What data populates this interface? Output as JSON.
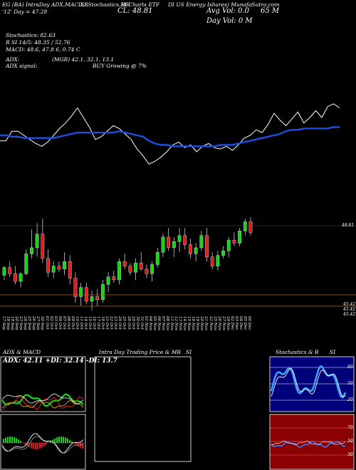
{
  "header": {
    "line1_left": "EG (BA) IntraDay ADX,MACD,R",
    "line1_mid": "SI,Stochastics,MR",
    "line1_mid2": "SI Charts ETF",
    "line1_right": "DI US Energy Ishares) MunafaSutra.com",
    "line2_left": "'12' Day = 47.28",
    "line2_cl": "CL: 48.81",
    "line2_avg": "Avg Vol: 0.0",
    "line2_vol": "65 M",
    "line3_day": "Day Vol: 0   M",
    "stoch": "Stochastics: 82.63",
    "rsi": "R   SI 14/5: 48.35 / 52.76",
    "macd": "MACD: 48.6,  47.8       6, 0.74  C",
    "adx_label": "ADX:",
    "adx_vals": "(MGR) 42.1,  32.1,  13.1",
    "adx_signal_label": "ADX  signal:",
    "adx_signal": "BUY Growing @ 7%"
  },
  "price_labels": [
    "48.81",
    "45.42",
    "45.42",
    "45.42"
  ],
  "x_dates": [
    "17 Sep",
    "18 Sep",
    "19 Sep",
    "20 Sep",
    "23 Sep",
    "24 Sep",
    "25 Sep",
    "26 Sep",
    "27 Sep",
    "30 Sep",
    "01 Oct",
    "02 Oct",
    "03 Oct",
    "04 Oct",
    "07 Oct",
    "08 Oct",
    "09 Oct",
    "10 Oct",
    "11 Oct",
    "14 Oct",
    "15 Oct",
    "16 Oct",
    "17 Oct",
    "18 Oct",
    "21 Oct",
    "22 Oct",
    "23 Oct",
    "24 Oct",
    "25 Oct",
    "28 Oct",
    "29 Oct",
    "30 Oct",
    "31 Oct",
    "01 Nov",
    "04 Nov",
    "05 Nov",
    "06 Nov",
    "07 Nov",
    "08 Nov",
    "11 Nov",
    "12 Nov",
    "13 Nov",
    "14 Nov",
    "15 Nov",
    "18 Nov",
    "19 Nov",
    "20 Nov",
    "21 Nov",
    "22 Nov",
    "25 Nov",
    "26 Nov",
    "27 Nov",
    "29 Nov",
    "02 Dec",
    "03 Dec",
    "04 Dec",
    "05 Dec",
    "06 Dec"
  ],
  "panels": {
    "adx_macd_title": "ADX  & MACD",
    "adx_readout": "ADX: 42.11  +DI: 32.14  -DI: 13.7",
    "intraday_title": "Intra  Day Trading Price  & MR",
    "intraday_title2": "SI",
    "stoch_title": "Stochastics & R",
    "stoch_title2": "SI",
    "stoch_ticks": [
      "80",
      "50",
      "20"
    ],
    "rsi_ticks": [
      "70",
      "50",
      "30"
    ]
  },
  "colors": {
    "price_line": "#ffffff",
    "ma_line": "#1d4fe0",
    "up": "#13d613",
    "down": "#e01a1a",
    "support_line": "#b5651d",
    "stoch_bg": "#00007a",
    "rsi_bg": "#8b0000"
  },
  "chart_data": [
    {
      "type": "line",
      "series": [
        {
          "values": [
            49.2,
            49.2,
            49.9,
            49.9,
            49.6,
            49.3,
            49.0,
            48.8,
            49.1,
            49.6,
            50.1,
            50.5,
            51.0,
            51.6,
            50.9,
            50.2,
            49.3,
            49.5,
            49.9,
            50.3,
            50.1,
            49.7,
            49.3,
            48.6,
            48.1,
            47.5,
            47.7,
            48.0,
            48.4,
            48.9,
            49.1,
            48.7,
            48.9,
            48.4,
            48.8,
            49.0,
            48.7,
            48.6,
            48.8,
            48.5,
            48.9,
            49.4,
            49.6,
            50.0,
            49.8,
            50.4,
            51.2,
            50.7,
            50.3,
            50.8,
            51.3,
            50.5,
            50.9,
            51.4,
            50.9,
            51.7,
            51.9,
            51.6
          ]
        },
        {
          "values": [
            49.6,
            49.6,
            49.5,
            49.5,
            49.4,
            49.4,
            49.4,
            49.4,
            49.4,
            49.4,
            49.5,
            49.6,
            49.7,
            49.8,
            49.8,
            49.8,
            49.8,
            49.8,
            49.8,
            49.8,
            49.9,
            49.8,
            49.7,
            49.6,
            49.5,
            49.2,
            49.0,
            48.9,
            48.9,
            48.8,
            48.8,
            48.8,
            48.8,
            48.8,
            48.8,
            48.8,
            48.8,
            48.9,
            48.9,
            48.9,
            49.0,
            49.1,
            49.2,
            49.3,
            49.4,
            49.5,
            49.6,
            49.7,
            49.9,
            50.0,
            50.0,
            50.1,
            50.1,
            50.1,
            50.1,
            50.1,
            50.2,
            50.2
          ]
        }
      ]
    },
    {
      "type": "bar",
      "candles": [
        [
          49.7,
          50.3,
          49.4,
          50.2
        ],
        [
          50.2,
          50.6,
          49.6,
          49.8
        ],
        [
          49.8,
          50.3,
          49.1,
          49.3
        ],
        [
          49.3,
          49.9,
          48.9,
          49.8
        ],
        [
          49.8,
          51.4,
          49.7,
          51.1
        ],
        [
          51.1,
          52.7,
          50.8,
          51.5
        ],
        [
          51.5,
          53.1,
          50.9,
          52.4
        ],
        [
          52.4,
          53.4,
          50.5,
          50.8
        ],
        [
          50.8,
          51.4,
          49.6,
          49.9
        ],
        [
          49.9,
          50.6,
          49.5,
          50.3
        ],
        [
          50.3,
          50.6,
          49.9,
          50.1
        ],
        [
          50.1,
          51.2,
          49.7,
          50.6
        ],
        [
          50.6,
          51.0,
          49.1,
          49.5
        ],
        [
          49.5,
          49.9,
          47.9,
          48.3
        ],
        [
          48.3,
          49.2,
          47.7,
          48.9
        ],
        [
          48.9,
          49.2,
          47.8,
          48.0
        ],
        [
          48.0,
          48.7,
          47.4,
          48.3
        ],
        [
          48.3,
          48.8,
          47.7,
          48.1
        ],
        [
          48.1,
          49.4,
          47.9,
          49.1
        ],
        [
          49.1,
          49.9,
          48.6,
          49.6
        ],
        [
          49.6,
          50.0,
          49.2,
          49.4
        ],
        [
          49.4,
          50.8,
          49.1,
          50.6
        ],
        [
          50.6,
          51.1,
          50.1,
          50.3
        ],
        [
          50.3,
          50.5,
          49.7,
          49.9
        ],
        [
          49.9,
          50.8,
          49.4,
          50.5
        ],
        [
          50.5,
          51.2,
          50.0,
          50.1
        ],
        [
          50.1,
          50.4,
          49.5,
          49.8
        ],
        [
          49.8,
          50.6,
          49.3,
          50.4
        ],
        [
          50.4,
          51.5,
          50.2,
          51.2
        ],
        [
          51.2,
          52.4,
          50.9,
          52.2
        ],
        [
          52.2,
          52.8,
          51.3,
          51.5
        ],
        [
          51.5,
          52.2,
          50.9,
          51.9
        ],
        [
          51.9,
          52.8,
          51.2,
          52.3
        ],
        [
          52.3,
          52.8,
          51.4,
          51.7
        ],
        [
          51.7,
          52.1,
          50.8,
          51.1
        ],
        [
          51.1,
          51.8,
          50.6,
          51.5
        ],
        [
          51.5,
          52.6,
          51.3,
          52.3
        ],
        [
          52.3,
          52.8,
          50.6,
          50.9
        ],
        [
          50.9,
          51.2,
          50.1,
          50.3
        ],
        [
          50.3,
          51.3,
          50.0,
          51.0
        ],
        [
          51.0,
          51.6,
          50.8,
          51.3
        ],
        [
          51.3,
          52.2,
          50.9,
          52.0
        ],
        [
          52.0,
          52.5,
          51.6,
          51.8
        ],
        [
          51.8,
          52.8,
          51.6,
          52.6
        ],
        [
          52.6,
          53.4,
          52.3,
          53.2
        ],
        [
          53.2,
          53.5,
          52.3,
          52.5
        ]
      ]
    }
  ]
}
